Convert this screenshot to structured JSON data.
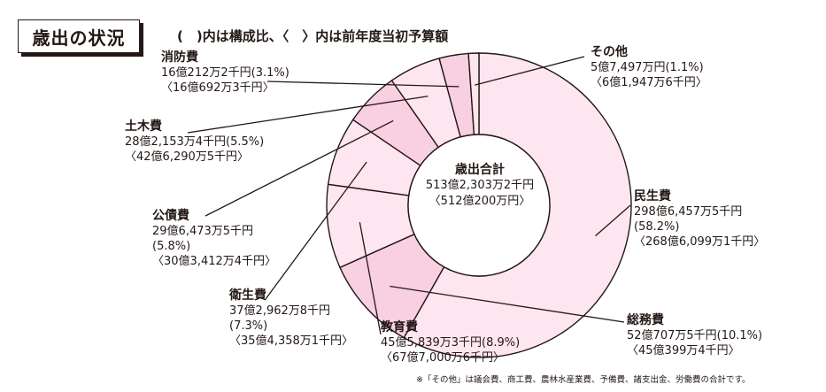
{
  "header": {
    "title": "歳出の状況",
    "note": "(　)内は構成比、〈　〉内は前年度当初予算額"
  },
  "center": {
    "title": "歳出合計",
    "amount": "513億2,303万2千円",
    "prev": "〈512億200万円〉"
  },
  "footnote": "※「その他」は議会費、商工費、農林水産業費、予備費、諸支出金、労働費の合計です。",
  "colors": {
    "light": "#fde6ef",
    "mid": "#f9cfe2",
    "dark": "#f6b9d3",
    "stroke": "#231815"
  },
  "chart_data": {
    "type": "pie",
    "variant": "donut",
    "title": "歳出の状況",
    "total": "513億2,303万2千円",
    "series": [
      {
        "key": "minsei",
        "name": "民生費",
        "value": 58.2,
        "amount": "298億6,457万5千円",
        "share": "(58.2%)",
        "prev": "〈268億6,099万1千円〉",
        "color": "light"
      },
      {
        "key": "somu",
        "name": "総務費",
        "value": 10.1,
        "amount": "52億707万5千円(10.1%)",
        "share": "",
        "prev": "〈45億399万4千円〉",
        "color": "mid"
      },
      {
        "key": "kyoiku",
        "name": "教育費",
        "value": 8.9,
        "amount": "45億5,839万3千円(8.9%)",
        "share": "",
        "prev": "〈67億7,000万6千円〉",
        "color": "light"
      },
      {
        "key": "eisei",
        "name": "衛生費",
        "value": 7.3,
        "amount": "37億2,962万8千円",
        "share": "(7.3%)",
        "prev": "〈35億4,358万1千円〉",
        "color": "light"
      },
      {
        "key": "kousai",
        "name": "公債費",
        "value": 5.8,
        "amount": "29億6,473万5千円",
        "share": "(5.8%)",
        "prev": "〈30億3,412万4千円〉",
        "color": "mid"
      },
      {
        "key": "doboku",
        "name": "土木費",
        "value": 5.5,
        "amount": "28億2,153万4千円(5.5%)",
        "share": "",
        "prev": "〈42億6,290万5千円〉",
        "color": "light"
      },
      {
        "key": "shobo",
        "name": "消防費",
        "value": 3.1,
        "amount": "16億212万2千円(3.1%)",
        "share": "",
        "prev": "〈16億692万3千円〉",
        "color": "mid"
      },
      {
        "key": "sonota",
        "name": "その他",
        "value": 1.1,
        "amount": "5億7,497万円(1.1%)",
        "share": "",
        "prev": "〈6億1,947万6千円〉",
        "color": "light"
      }
    ]
  }
}
